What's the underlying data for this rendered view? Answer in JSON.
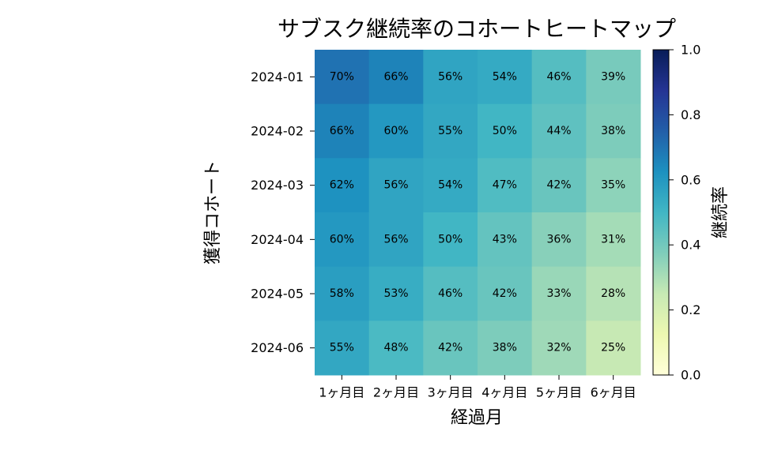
{
  "chart_data": {
    "type": "heatmap",
    "title": "サブスク継続率のコホートヒートマップ",
    "x_label": "経過月",
    "y_label": "獲得コホート",
    "colorbar_label": "継続率",
    "columns": [
      "1ヶ月目",
      "2ヶ月目",
      "3ヶ月目",
      "4ヶ月目",
      "5ヶ月目",
      "6ヶ月目"
    ],
    "rows": [
      "2024-01",
      "2024-02",
      "2024-03",
      "2024-04",
      "2024-05",
      "2024-06"
    ],
    "values": [
      [
        0.7,
        0.66,
        0.56,
        0.54,
        0.46,
        0.39
      ],
      [
        0.66,
        0.6,
        0.55,
        0.5,
        0.44,
        0.38
      ],
      [
        0.62,
        0.56,
        0.54,
        0.47,
        0.42,
        0.35
      ],
      [
        0.6,
        0.56,
        0.5,
        0.43,
        0.36,
        0.31
      ],
      [
        0.58,
        0.53,
        0.46,
        0.42,
        0.33,
        0.28
      ],
      [
        0.55,
        0.48,
        0.42,
        0.38,
        0.32,
        0.25
      ]
    ],
    "value_labels": [
      [
        "70%",
        "66%",
        "56%",
        "54%",
        "46%",
        "39%"
      ],
      [
        "66%",
        "60%",
        "55%",
        "50%",
        "44%",
        "38%"
      ],
      [
        "62%",
        "56%",
        "54%",
        "47%",
        "42%",
        "35%"
      ],
      [
        "60%",
        "56%",
        "50%",
        "43%",
        "36%",
        "31%"
      ],
      [
        "58%",
        "53%",
        "46%",
        "42%",
        "33%",
        "28%"
      ],
      [
        "55%",
        "48%",
        "42%",
        "38%",
        "32%",
        "25%"
      ]
    ],
    "colormap": "YlGnBu",
    "zlim": [
      0,
      1
    ],
    "zticks": [
      {
        "value": 0,
        "label": "0.0"
      },
      0.2,
      0.4,
      0.6,
      0.8,
      {
        "value": 1,
        "label": "1.0"
      }
    ]
  }
}
